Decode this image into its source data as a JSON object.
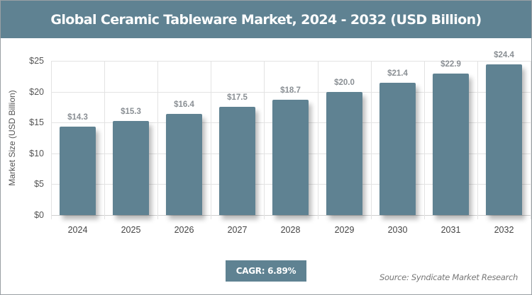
{
  "header": {
    "title": "Global Ceramic Tableware Market, 2024 - 2032 (USD Billion)"
  },
  "axis": {
    "ylabel": "Market Size (USD Billion)",
    "yticks": [
      "$0",
      "$5",
      "$10",
      "$15",
      "$20",
      "$25"
    ]
  },
  "bars": [
    {
      "year": "2024",
      "label": "$14.3"
    },
    {
      "year": "2025",
      "label": "$15.3"
    },
    {
      "year": "2026",
      "label": "$16.4"
    },
    {
      "year": "2027",
      "label": "$17.5"
    },
    {
      "year": "2028",
      "label": "$18.7"
    },
    {
      "year": "2029",
      "label": "$20.0"
    },
    {
      "year": "2030",
      "label": "$21.4"
    },
    {
      "year": "2031",
      "label": "$22.9"
    },
    {
      "year": "2032",
      "label": "$24.4"
    }
  ],
  "footer": {
    "cagr": "CAGR: 6.89%",
    "source": "Source: Syndicate Market Research"
  },
  "colors": {
    "bar": "#5f8292",
    "header": "#5f8292"
  },
  "chart_data": {
    "type": "bar",
    "title": "Global Ceramic Tableware Market, 2024 - 2032 (USD Billion)",
    "categories": [
      "2024",
      "2025",
      "2026",
      "2027",
      "2028",
      "2029",
      "2030",
      "2031",
      "2032"
    ],
    "values": [
      14.3,
      15.3,
      16.4,
      17.5,
      18.7,
      20.0,
      21.4,
      22.9,
      24.4
    ],
    "xlabel": "",
    "ylabel": "Market Size (USD Billion)",
    "ylim": [
      0,
      25
    ],
    "yticks": [
      0,
      5,
      10,
      15,
      20,
      25
    ],
    "grid": true,
    "legend": null,
    "annotations": [
      "CAGR: 6.89%",
      "Source: Syndicate Market Research"
    ]
  }
}
